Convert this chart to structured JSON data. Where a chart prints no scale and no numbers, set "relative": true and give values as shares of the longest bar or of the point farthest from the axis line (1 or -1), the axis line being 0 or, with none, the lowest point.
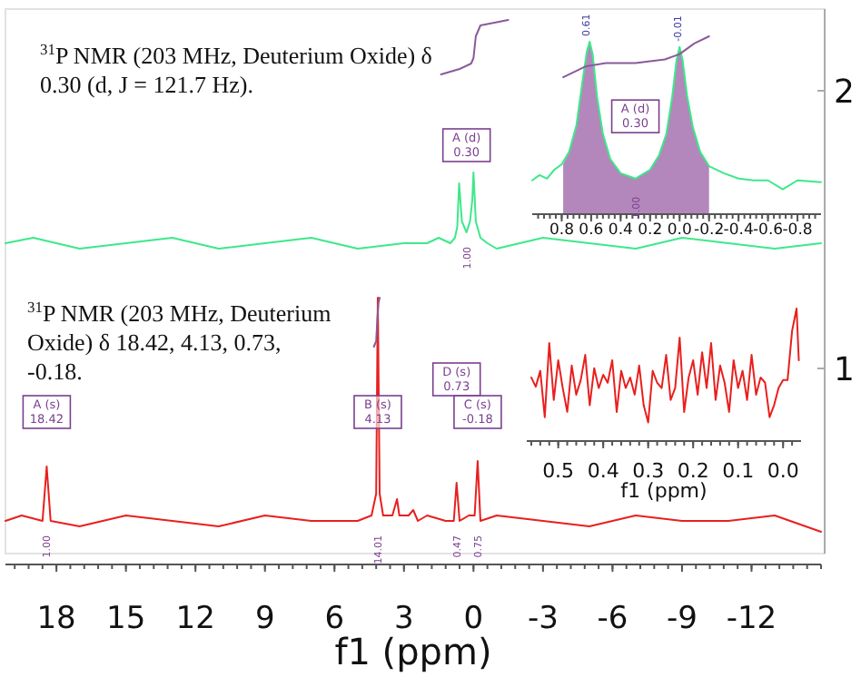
{
  "chart_data": [
    {
      "type": "line",
      "relative": true,
      "xlim": [
        20.2,
        -15
      ],
      "xticks": [
        18,
        15,
        12,
        9,
        6,
        3,
        0,
        -3,
        -6,
        -9,
        -12
      ],
      "xlabel": "f1 (ppm)",
      "series": [
        {
          "name": "2",
          "color": "#3de88a",
          "x": [
            20.2,
            19,
            17,
            15,
            13,
            11,
            9,
            7,
            5,
            3,
            2,
            1.5,
            1.0,
            0.8,
            0.7,
            0.62,
            0.5,
            0.3,
            0.15,
            0.05,
            0,
            -0.1,
            -0.3,
            -0.6,
            -1,
            -3,
            -5,
            -7,
            -9,
            -11,
            -13,
            -15
          ],
          "values": [
            0.59,
            0.6,
            0.58,
            0.59,
            0.6,
            0.58,
            0.59,
            0.6,
            0.58,
            0.59,
            0.59,
            0.6,
            0.59,
            0.6,
            0.62,
            0.7,
            0.63,
            0.61,
            0.63,
            0.67,
            0.72,
            0.63,
            0.6,
            0.59,
            0.58,
            0.6,
            0.59,
            0.58,
            0.6,
            0.59,
            0.58,
            0.59
          ]
        },
        {
          "color": "#8a5a9a",
          "x": [
            1.4,
            0.6,
            0.1,
            0,
            -0.1,
            -0.3,
            -1.5
          ],
          "values": [
            0.9,
            0.91,
            0.92,
            0.93,
            0.97,
            0.99,
            1.0
          ]
        },
        {
          "name": "1",
          "color": "#e8201e",
          "x": [
            20.2,
            19.5,
            18.6,
            18.42,
            18.25,
            17,
            15,
            13,
            11,
            9,
            7,
            5,
            4.4,
            4.2,
            4.13,
            4.05,
            3.9,
            3.5,
            3.3,
            3.2,
            2.8,
            2.6,
            2.4,
            2,
            1.2,
            0.85,
            0.73,
            0.6,
            0.2,
            -0.05,
            -0.18,
            -0.3,
            -1,
            -3,
            -5,
            -7,
            -9,
            -11,
            -13,
            -15
          ],
          "values": [
            0.08,
            0.09,
            0.08,
            0.18,
            0.08,
            0.07,
            0.09,
            0.08,
            0.07,
            0.09,
            0.08,
            0.08,
            0.09,
            0.13,
            0.49,
            0.13,
            0.09,
            0.09,
            0.12,
            0.09,
            0.09,
            0.1,
            0.08,
            0.09,
            0.08,
            0.08,
            0.15,
            0.08,
            0.09,
            0.09,
            0.19,
            0.08,
            0.09,
            0.08,
            0.07,
            0.09,
            0.08,
            0.08,
            0.09,
            0.06
          ]
        },
        {
          "color": "#8a5a9a",
          "x": [
            4.3,
            4.2,
            4.15,
            4.1,
            4.05
          ],
          "values": [
            0.4,
            0.41,
            0.45,
            0.48,
            0.49
          ]
        }
      ],
      "annotations": [
        "$^{31}$P NMR (203 MHz, Deuterium Oxide) δ 0.30 (d, J = 121.7 Hz).",
        "$^{31}$P NMR (203 MHz, Deuterium Oxide) δ 18.42, 4.13, 0.73, -0.18.",
        {
          "text": "A (d) 0.30",
          "x": 0.3,
          "y": 0.77
        },
        {
          "text": "A (s) 18.42",
          "x": 18.42,
          "y": 0.28
        },
        {
          "text": "B (s) 4.13",
          "x": 4.13,
          "y": 0.28
        },
        {
          "text": "D (s) 0.73",
          "x": 0.73,
          "y": 0.34
        },
        {
          "text": "C (s) -0.18",
          "x": -0.18,
          "y": 0.28
        },
        {
          "text": "1.00",
          "x": 0.3,
          "y": 0.61
        },
        {
          "text": "1.00",
          "x": 18.42,
          "y": 0.08
        },
        {
          "text": "14.01",
          "x": 4.13,
          "y": 0.08
        },
        {
          "text": "0.47",
          "x": 0.73,
          "y": 0.08
        },
        {
          "text": "0.75",
          "x": -0.18,
          "y": 0.08
        }
      ]
    },
    {
      "type": "line",
      "relative": true,
      "xlim": [
        1.0,
        -0.96
      ],
      "xticks": [
        0.8,
        0.6,
        0.4,
        0.2,
        {
          "value": 0,
          "label": "0.0"
        },
        -0.2,
        -0.4,
        -0.6,
        -0.8
      ],
      "series": [
        {
          "type": "area",
          "color": "#9a5fa5",
          "x": [
            0.79,
            0.75,
            0.7,
            0.66,
            0.63,
            0.61,
            0.59,
            0.56,
            0.52,
            0.47,
            0.4,
            0.3,
            0.2,
            0.14,
            0.09,
            0.05,
            0.02,
            0.0,
            -0.02,
            -0.05,
            -0.09,
            -0.14,
            -0.2
          ],
          "values": [
            0.28,
            0.35,
            0.5,
            0.74,
            0.91,
            0.97,
            0.9,
            0.66,
            0.45,
            0.31,
            0.23,
            0.2,
            0.25,
            0.33,
            0.45,
            0.66,
            0.87,
            0.94,
            0.87,
            0.67,
            0.49,
            0.35,
            0.27
          ]
        },
        {
          "color": "#3de88a",
          "x": [
            1.0,
            0.95,
            0.9,
            0.85,
            0.8,
            0.75,
            0.7,
            0.66,
            0.63,
            0.61,
            0.59,
            0.56,
            0.52,
            0.47,
            0.4,
            0.3,
            0.2,
            0.14,
            0.09,
            0.05,
            0.02,
            0.0,
            -0.02,
            -0.05,
            -0.09,
            -0.14,
            -0.2,
            -0.3,
            -0.4,
            -0.5,
            -0.6,
            -0.7,
            -0.8,
            -0.96
          ],
          "values": [
            0.19,
            0.22,
            0.2,
            0.25,
            0.28,
            0.35,
            0.5,
            0.74,
            0.91,
            0.97,
            0.9,
            0.66,
            0.45,
            0.31,
            0.23,
            0.2,
            0.25,
            0.33,
            0.45,
            0.66,
            0.87,
            0.94,
            0.87,
            0.67,
            0.49,
            0.35,
            0.27,
            0.23,
            0.2,
            0.19,
            0.19,
            0.14,
            0.19,
            0.18
          ]
        },
        {
          "color": "#8a5a9a",
          "x": [
            0.79,
            0.64,
            0.5,
            0.3,
            0.1,
            0.0,
            -0.1,
            -0.2
          ],
          "values": [
            0.77,
            0.83,
            0.85,
            0.85,
            0.87,
            0.9,
            0.96,
            1.0
          ]
        }
      ],
      "annotations": [
        {
          "text": "A (d) 0.30",
          "x": 0.3,
          "y": 0.55
        },
        {
          "text": "0.61",
          "x": 0.61,
          "y": 0.97
        },
        {
          "text": "-0.01",
          "x": -0.01,
          "y": 0.94
        },
        {
          "text": "1.00",
          "x": 0.3,
          "y": 0.18
        }
      ]
    },
    {
      "type": "line",
      "relative": true,
      "xlim": [
        0.57,
        -0.04
      ],
      "xticks": [
        0.5,
        0.4,
        0.3,
        0.2,
        0.1,
        {
          "value": 0,
          "label": "0.0"
        }
      ],
      "xlabel": "f1 (ppm)",
      "series": [
        {
          "color": "#e8201e",
          "x": [
            0.56,
            0.55,
            0.54,
            0.53,
            0.52,
            0.51,
            0.5,
            0.49,
            0.48,
            0.47,
            0.46,
            0.45,
            0.44,
            0.43,
            0.42,
            0.41,
            0.4,
            0.39,
            0.38,
            0.37,
            0.36,
            0.35,
            0.34,
            0.33,
            0.32,
            0.31,
            0.3,
            0.29,
            0.28,
            0.27,
            0.26,
            0.25,
            0.24,
            0.23,
            0.22,
            0.21,
            0.2,
            0.19,
            0.18,
            0.17,
            0.16,
            0.15,
            0.14,
            0.13,
            0.12,
            0.11,
            0.1,
            0.09,
            0.08,
            0.07,
            0.06,
            0.05,
            0.04,
            0.03,
            0.02,
            0.01,
            0.0,
            -0.01,
            -0.02,
            -0.03,
            -0.035
          ],
          "values": [
            0.48,
            0.41,
            0.53,
            0.18,
            0.74,
            0.31,
            0.61,
            0.4,
            0.22,
            0.57,
            0.35,
            0.46,
            0.65,
            0.27,
            0.55,
            0.4,
            0.5,
            0.44,
            0.61,
            0.22,
            0.53,
            0.4,
            0.48,
            0.35,
            0.57,
            0.27,
            0.14,
            0.53,
            0.44,
            0.4,
            0.65,
            0.31,
            0.4,
            0.78,
            0.22,
            0.48,
            0.61,
            0.35,
            0.67,
            0.4,
            0.74,
            0.31,
            0.57,
            0.44,
            0.22,
            0.61,
            0.4,
            0.53,
            0.31,
            0.65,
            0.35,
            0.48,
            0.44,
            0.18,
            0.27,
            0.4,
            0.46,
            0.46,
            0.83,
            1.0,
            0.61
          ]
        }
      ]
    }
  ]
}
